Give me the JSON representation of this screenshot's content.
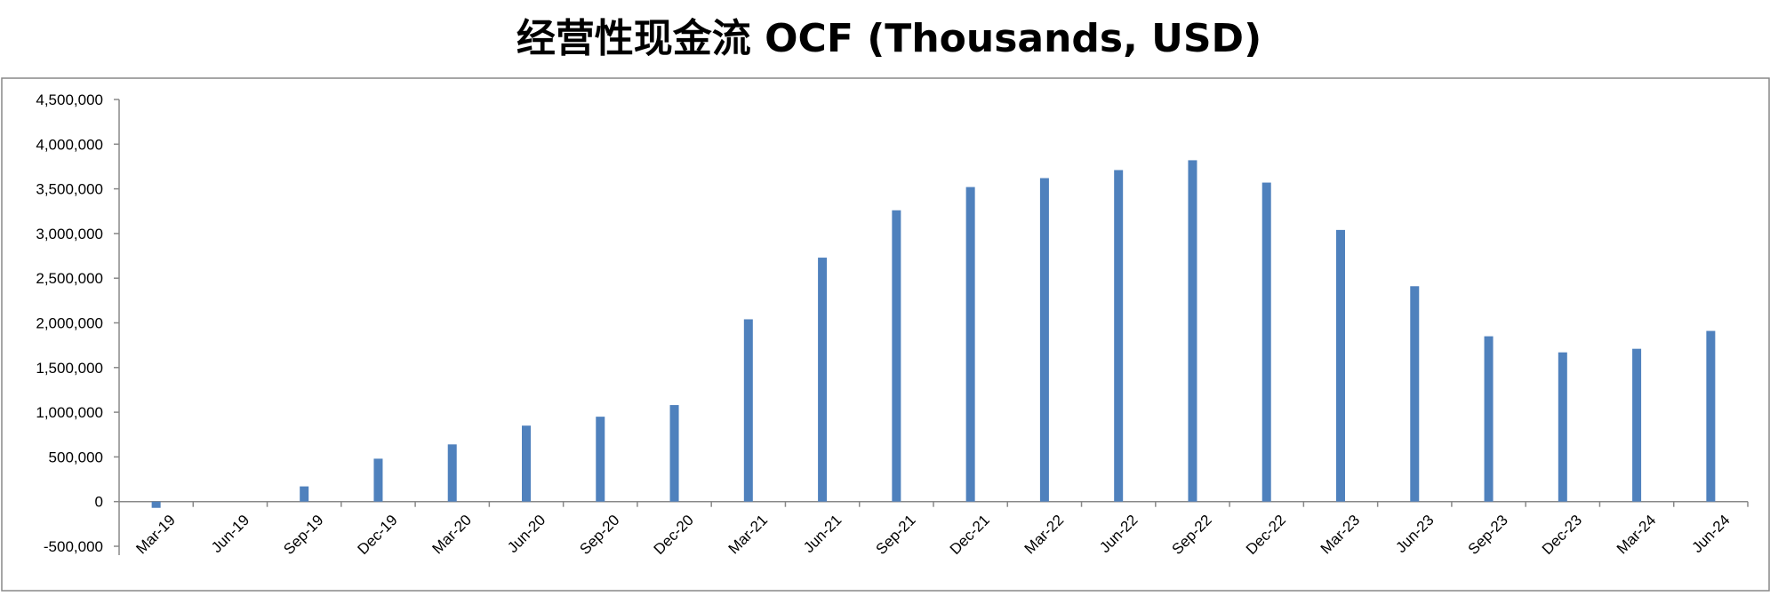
{
  "chart_data": {
    "type": "bar",
    "title": "经营性现金流 OCF (Thousands, USD)",
    "xlabel": "",
    "ylabel": "",
    "ylim": [
      -500000,
      4500000
    ],
    "ytick_step": 500000,
    "yticks": [
      "-500,000",
      "0",
      "500,000",
      "1,000,000",
      "1,500,000",
      "2,000,000",
      "2,500,000",
      "3,000,000",
      "3,500,000",
      "4,000,000",
      "4,500,000"
    ],
    "grid": false,
    "legend": "none",
    "bar_color": "#4f81bd",
    "categories": [
      "Mar-19",
      "Jun-19",
      "Sep-19",
      "Dec-19",
      "Mar-20",
      "Jun-20",
      "Sep-20",
      "Dec-20",
      "Mar-21",
      "Jun-21",
      "Sep-21",
      "Dec-21",
      "Mar-22",
      "Jun-22",
      "Sep-22",
      "Dec-22",
      "Mar-23",
      "Jun-23",
      "Sep-23",
      "Dec-23",
      "Mar-24",
      "Jun-24"
    ],
    "values": [
      -70000,
      0,
      170000,
      480000,
      640000,
      850000,
      950000,
      1080000,
      2040000,
      2730000,
      3260000,
      3520000,
      3620000,
      3710000,
      3820000,
      3570000,
      3040000,
      2410000,
      1850000,
      1670000,
      1710000,
      1910000
    ]
  }
}
